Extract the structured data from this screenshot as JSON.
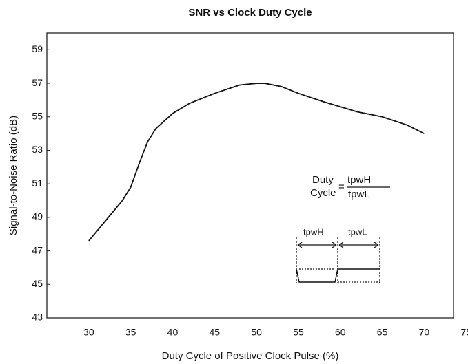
{
  "chart_data": {
    "type": "line",
    "title": "SNR vs Clock Duty Cycle",
    "xlabel": "Duty Cycle of Positive Clock Pulse (%)",
    "ylabel": "Signal-to-Noise Ratio (dB)",
    "x": [
      30,
      32,
      34,
      35,
      36,
      37,
      38,
      40,
      42,
      45,
      48,
      50,
      51,
      53,
      55,
      58,
      60,
      62,
      65,
      68,
      70
    ],
    "series": [
      {
        "name": "SNR",
        "color": "#111111",
        "values": [
          47.6,
          48.8,
          50.0,
          50.8,
          52.2,
          53.5,
          54.3,
          55.2,
          55.8,
          56.4,
          56.9,
          57.0,
          57.0,
          56.8,
          56.4,
          55.9,
          55.6,
          55.3,
          55.0,
          54.5,
          54.0
        ]
      }
    ],
    "xlim": [
      25,
      73.5
    ],
    "xticks": [
      30,
      35,
      40,
      45,
      50,
      55,
      60,
      65,
      70,
      75
    ],
    "ylim": [
      43,
      60
    ],
    "yticks": [
      43,
      45,
      47,
      49,
      51,
      53,
      55,
      57,
      59
    ],
    "grid": false,
    "annotations": {
      "formula_left_top": "Duty",
      "formula_left_bottom": "Cycle",
      "equals": "=",
      "numerator": "tpwH",
      "denominator": "tpwL",
      "pulse_high_label": "tpwH",
      "pulse_low_label": "tpwL"
    }
  }
}
